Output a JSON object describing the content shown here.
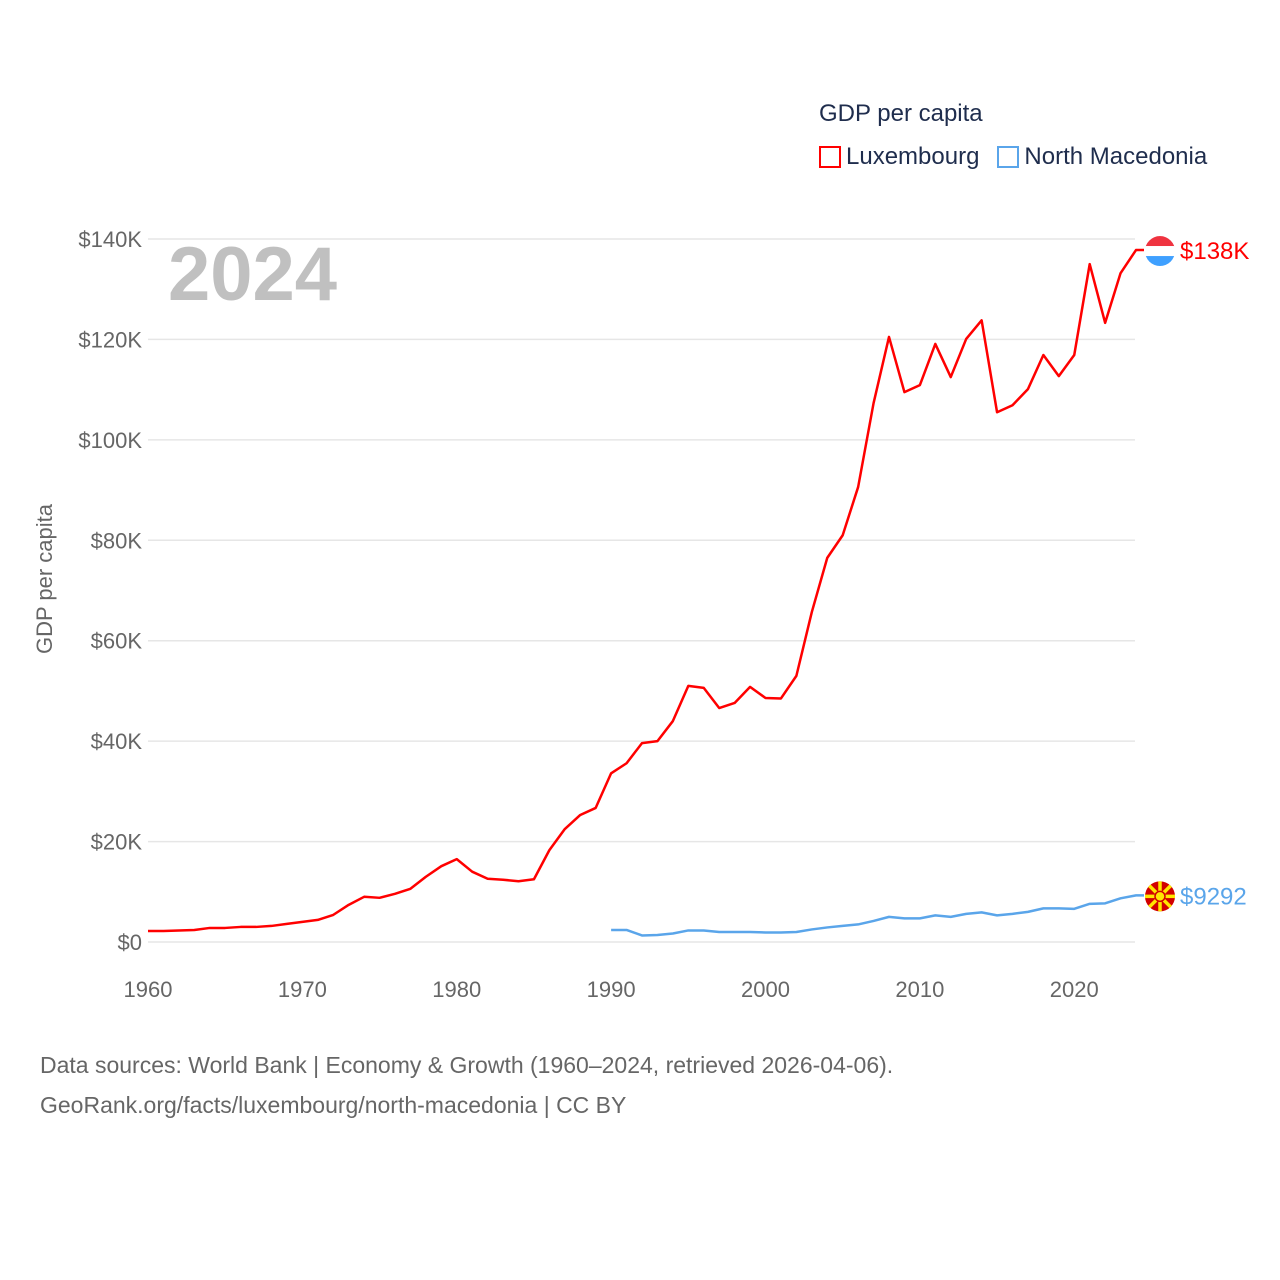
{
  "chart_data": {
    "type": "line",
    "title": "GDP per capita",
    "year_label": "2024",
    "ylabel": "GDP per capita",
    "xlabel": "",
    "xlim": [
      1960,
      2024
    ],
    "ylim": [
      0,
      140000
    ],
    "x_ticks": [
      1960,
      1970,
      1980,
      1990,
      2000,
      2010,
      2020
    ],
    "x_tick_labels": [
      "1960",
      "1970",
      "1980",
      "1990",
      "2000",
      "2010",
      "2020"
    ],
    "y_ticks": [
      0,
      20000,
      40000,
      60000,
      80000,
      100000,
      120000,
      140000
    ],
    "y_tick_labels": [
      "$0",
      "$20K",
      "$40K",
      "$60K",
      "$80K",
      "$100K",
      "$120K",
      "$140K"
    ],
    "grid": true,
    "legend_position": "top-right",
    "series": [
      {
        "name": "Luxembourg",
        "color": "#ff0000",
        "end_label": "$138K",
        "start_year": 1960,
        "values": [
          2200,
          2200,
          2300,
          2400,
          2800,
          2800,
          3000,
          3000,
          3200,
          3600,
          4000,
          4400,
          5400,
          7400,
          9000,
          8800,
          9600,
          10600,
          13000,
          15100,
          16500,
          14000,
          12600,
          12400,
          12100,
          12500,
          18300,
          22500,
          25300,
          26700,
          33600,
          35600,
          39600,
          40000,
          44000,
          51000,
          50600,
          46600,
          47600,
          50800,
          48600,
          48500,
          53000,
          65700,
          76500,
          81000,
          90600,
          107300,
          120500,
          109500,
          110900,
          119100,
          112500,
          120100,
          123800,
          105500,
          106900,
          110100,
          116900,
          112700,
          116900,
          135000,
          123300,
          133200,
          137800
        ]
      },
      {
        "name": "North Macedonia",
        "color": "#5aa5ea",
        "end_label": "$9292",
        "start_year": 1990,
        "values": [
          2400,
          2400,
          1300,
          1400,
          1700,
          2300,
          2300,
          2000,
          2000,
          2000,
          1900,
          1900,
          2000,
          2500,
          2900,
          3200,
          3500,
          4200,
          5000,
          4700,
          4700,
          5300,
          5000,
          5600,
          5900,
          5300,
          5600,
          6000,
          6700,
          6700,
          6600,
          7600,
          7700,
          8700,
          9292
        ]
      }
    ]
  },
  "footer": {
    "line1": "Data sources: World Bank | Economy & Growth (1960–2024, retrieved 2026-04-06).",
    "line2": "GeoRank.org/facts/luxembourg/north-macedonia | CC BY"
  }
}
